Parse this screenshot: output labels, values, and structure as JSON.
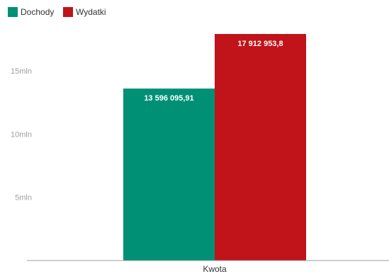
{
  "chart_data": {
    "type": "bar",
    "categories": [
      "Kwota"
    ],
    "series": [
      {
        "name": "Dochody",
        "values": [
          13596095.91
        ],
        "value_label": "13 596 095,91",
        "color": "#009075"
      },
      {
        "name": "Wydatki",
        "values": [
          17912953.8
        ],
        "value_label": "17 912 953,8",
        "color": "#c1131a"
      }
    ],
    "yticks": [
      {
        "value": 5000000,
        "label": "5mln"
      },
      {
        "value": 10000000,
        "label": "10mln"
      },
      {
        "value": 15000000,
        "label": "15mln"
      }
    ],
    "ylim": [
      0,
      17912953.8
    ],
    "grid": false,
    "legend_position": "top-left"
  }
}
